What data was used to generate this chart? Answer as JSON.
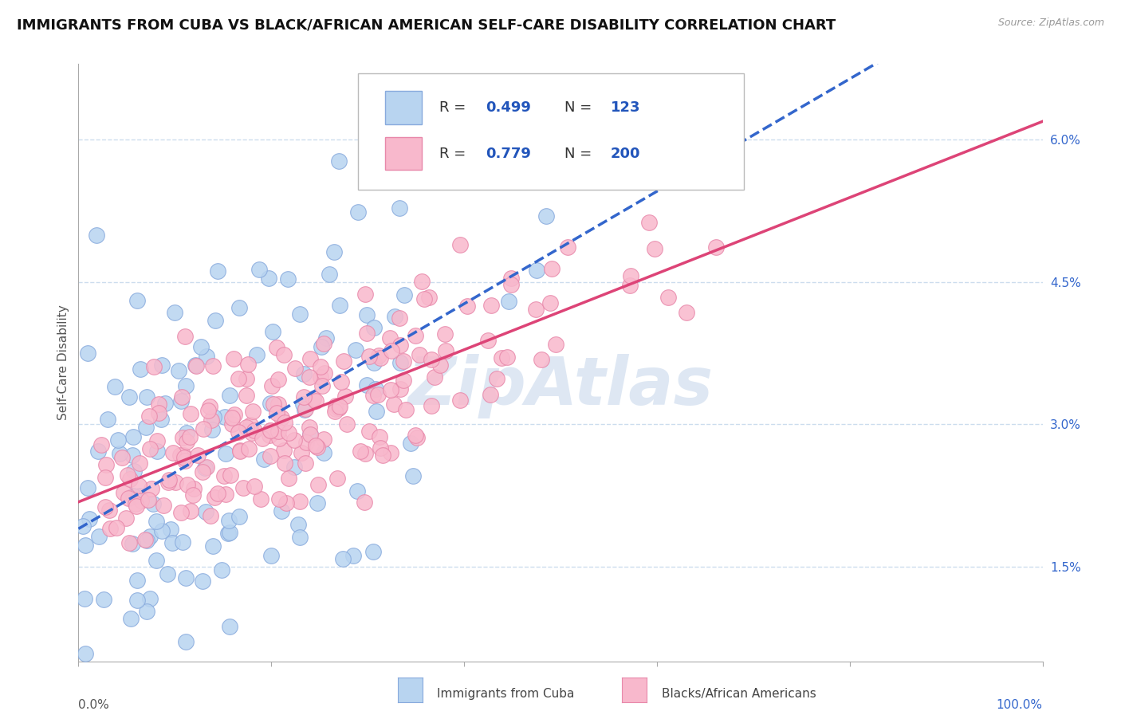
{
  "title": "IMMIGRANTS FROM CUBA VS BLACK/AFRICAN AMERICAN SELF-CARE DISABILITY CORRELATION CHART",
  "source": "Source: ZipAtlas.com",
  "ylabel": "Self-Care Disability",
  "yticks": [
    0.015,
    0.03,
    0.045,
    0.06
  ],
  "ytick_labels": [
    "1.5%",
    "3.0%",
    "4.5%",
    "6.0%"
  ],
  "xlim": [
    0.0,
    1.0
  ],
  "ylim": [
    0.005,
    0.068
  ],
  "series": [
    {
      "name": "Immigrants from Cuba",
      "color": "#b8d4f0",
      "edge_color": "#88aadd",
      "R": 0.499,
      "N": 123,
      "trend_color": "#3366cc",
      "trend_style": "--"
    },
    {
      "name": "Blacks/African Americans",
      "color": "#f8b8cc",
      "edge_color": "#e888aa",
      "R": 0.779,
      "N": 200,
      "trend_color": "#dd4477",
      "trend_style": "-"
    }
  ],
  "legend_color": "#2255bb",
  "grid_color": "#ccddee",
  "background_color": "#ffffff",
  "watermark": "ZipAtlas",
  "watermark_color": "#c8d8ec",
  "title_fontsize": 13,
  "axis_label_fontsize": 11,
  "tick_fontsize": 11,
  "tick_color": "#3366cc",
  "legend_fontsize": 13,
  "xtick_color": "#555555"
}
